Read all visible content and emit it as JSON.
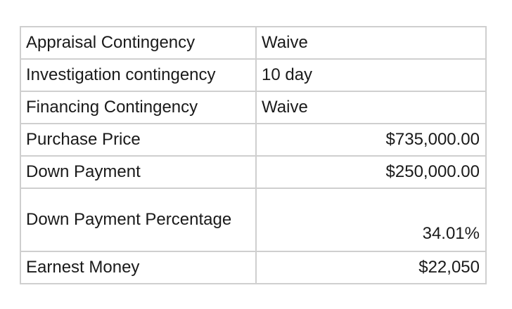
{
  "table": {
    "rows": [
      {
        "label": "Appraisal Contingency",
        "value": "Waive"
      },
      {
        "label": "Investigation contingency",
        "value": "10 day"
      },
      {
        "label": "Financing Contingency",
        "value": "Waive"
      },
      {
        "label": "Purchase Price",
        "value": "$735,000.00"
      },
      {
        "label": "Down Payment",
        "value": "$250,000.00"
      },
      {
        "label": "Down Payment Percentage",
        "value": "34.01%"
      },
      {
        "label": "Earnest Money",
        "value": "$22,050"
      }
    ]
  }
}
